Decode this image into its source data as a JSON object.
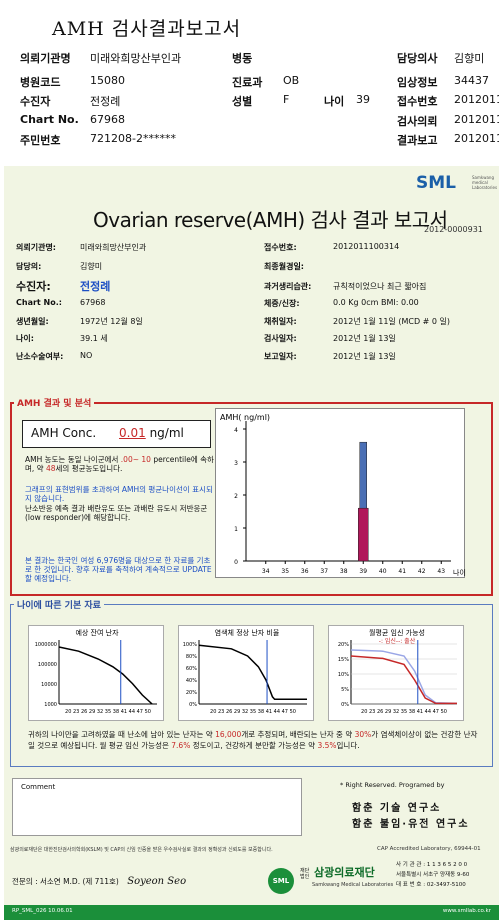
{
  "header": {
    "title": "AMH 검사결과보고서",
    "rows": [
      {
        "c1l": "의뢰기관명",
        "c1v": "미래와희망산부인과",
        "c2l": "병동",
        "c2v": "",
        "c3l": "담당의사",
        "c3v": "김향미"
      },
      {
        "c1l": "병원코드",
        "c1v": "15080",
        "c2l": "진료과",
        "c2v": "OB",
        "c3l": "임상정보",
        "c3v": "34437"
      },
      {
        "c1l": "수진자",
        "c1v": "전정례",
        "c2l": "성별",
        "c2v": "F",
        "c2l2": "나이",
        "c2v2": "39",
        "c3l": "접수번호",
        "c3v": "20120111"
      },
      {
        "c1l": "Chart No.",
        "c1v": "67968",
        "c2l": "",
        "c2v": "",
        "c3l": "검사의뢰",
        "c3v": "20120111"
      },
      {
        "c1l": "주민번호",
        "c1v": "721208-2******",
        "c2l": "",
        "c2v": "",
        "c3l": "결과보고",
        "c3v": "20120113"
      }
    ]
  },
  "report": {
    "logo": "SML",
    "logo_sub": "Samkwang medical Laboratories",
    "title": "Ovarian reserve(AMH) 검사 결과 보고서",
    "doc_no": "2012-0000931",
    "left_info": [
      {
        "label": "의뢰기관명:",
        "value": "미래와희망산부인과"
      },
      {
        "label": "담당의:",
        "value": "김향미"
      },
      {
        "label": "수진자:",
        "value": "전정례"
      },
      {
        "label": "Chart No.:",
        "value": "67968"
      },
      {
        "label": "생년월일:",
        "value": "1972년 12월 8일"
      },
      {
        "label": "나이:",
        "value": "39.1 세"
      },
      {
        "label": "난소수술여부:",
        "value": "NO"
      }
    ],
    "right_info": [
      {
        "label": "접수번호:",
        "value": "2012011100314"
      },
      {
        "label": "최종월경일:",
        "value": ""
      },
      {
        "label": "과거생리습관:",
        "value": "규칙적이었으나 최근 짧아짐"
      },
      {
        "label": "체중/신장:",
        "value": "0.0 Kg        0cm    BMI:  0.00"
      },
      {
        "label": "채취일자:",
        "value": "2012년 1월 11일  (MCD # 0 일)"
      },
      {
        "label": "검사일자:",
        "value": "2012년 1월 13일"
      },
      {
        "label": "보고일자:",
        "value": "2012년 1월 13일"
      }
    ]
  },
  "amh_section": {
    "heading": "AMH 결과 및 분석",
    "conc_label": "AMH Conc.",
    "conc_value": "0.01",
    "conc_unit": "ng/ml",
    "p1a": "AMH 농도는 동일 나이군에서",
    "p1b": ".00~ 10",
    "p1c": "percentile에 속하며, 약",
    "p1d": "48",
    "p1e": "세의 평균농도입니다.",
    "p2": "그래프의 표현범위를 초과하여 AMH의 평균나이선이 표시되지 않습니다.",
    "p3": "난소반응 예측 결과 배란유도 또는 과배란 유도시 저반응군 (low responder)에 해당합니다.",
    "p4": "본 결과는 한국인 여성 6,976명을 대상으로 한 자료를 기초로 한 것입니다. 향후 자료를 축적하여 계속적으로 UPDATE할 예정입니다."
  },
  "chart_data": [
    {
      "type": "bar",
      "ylabel": "AMH( ng/ml)",
      "xlabel": "나이",
      "categories": [
        "34",
        "35",
        "36",
        "37",
        "38",
        "39",
        "40",
        "41",
        "42",
        "43"
      ],
      "ylim": [
        0,
        4
      ],
      "yticks": [
        "0",
        "1",
        "2",
        "3",
        "4"
      ],
      "series": [
        {
          "name": "",
          "values": [
            0,
            0,
            0,
            0,
            0,
            3.6,
            0,
            0,
            0,
            0
          ],
          "color": "#4a6fb5"
        },
        {
          "name": "",
          "values": [
            0,
            0,
            0,
            0,
            0,
            1.6,
            0,
            0,
            0,
            0
          ],
          "color": "#b0185a"
        }
      ]
    },
    {
      "type": "line",
      "title": "예상 잔여 난자",
      "yticks": [
        "1000000",
        "100000",
        "10000",
        "1000"
      ],
      "xticks": "20 23 26 29 32 35 38 41 44 47 50"
    },
    {
      "type": "line",
      "title": "염색체 정상 난자 비율",
      "yticks": [
        "100%",
        "80%",
        "60%",
        "40%",
        "20%",
        "0%"
      ],
      "xticks": "20 23 26 29 32 35 38 41 44 47 50"
    },
    {
      "type": "line",
      "title": "월평균 임신 가능성",
      "legend": "-: 임신--: 출산",
      "yticks": [
        "20%",
        "15%",
        "10%",
        "5%",
        "0%"
      ],
      "xticks": "20 23 26 29 32 35 38 41 44 47 50"
    }
  ],
  "age_section": {
    "heading": "나이에 따른 기본 자료",
    "summary_a": "귀하의 나이만을 고려하였을 때 난소에 남아 있는 난자는 약",
    "summary_eggs": "16,000",
    "summary_b": "개로 추정되며, 배란되는 난자 중 약",
    "summary_pct": "30%",
    "summary_c": "가 염색체이상이 없는 건강한 난자일 것으로 예상됩니다. 월 평균 임신 가능성은",
    "summary_preg": "7.6%",
    "summary_d": "정도이고, 건강하게 분만할 가능성은 약",
    "summary_birth": "3.5%",
    "summary_e": "입니다."
  },
  "footer": {
    "comment": "Comment",
    "rights": "* Right Reserved. Programed by",
    "inst1": "함춘 기술 연구소",
    "inst2": "함춘 불임·유전 연구소",
    "note": "삼광의료재단은 대한진단검사의학회(KSLM) 및 CAP의 신임 인증을 받은 우수검사실로 결과의 정확성과 신뢰도를 보증합니다.",
    "cap": "CAP  Accredited  Laboratory,  69944-01",
    "doctor": "전문의 : 서소연 M.D. (제 711호)",
    "lab_name": "삼광의료재단",
    "lab_sub": "Samkwang Medical Laboratories",
    "lab_line1": "재단법인",
    "lab_info1": "사 기 관 관 : 1 1 3 6 5 2 0 0",
    "lab_info2": "서울특별시 서초구 양재동 9-60",
    "lab_info3": "대 표 번 호 : 02-3497-5100",
    "form_no": "RP_SML_026  10.06.01",
    "url": "www.smllab.co.kr"
  }
}
